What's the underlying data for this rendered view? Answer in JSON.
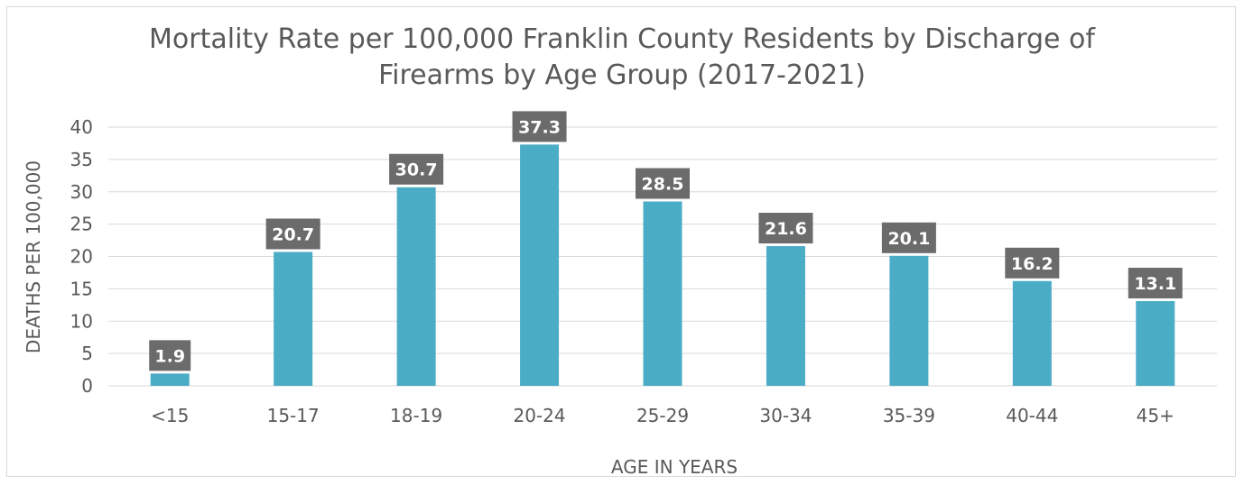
{
  "chart_data": {
    "type": "bar",
    "title_lines": [
      "Mortality Rate per 100,000 Franklin County Residents by Discharge of",
      "Firearms by Age Group (2017-2021)"
    ],
    "xlabel": "AGE IN YEARS",
    "ylabel": "DEATHS PER 100,000",
    "categories": [
      "<15",
      "15-17",
      "18-19",
      "20-24",
      "25-29",
      "30-34",
      "35-39",
      "40-44",
      "45+"
    ],
    "values": [
      1.9,
      20.7,
      30.7,
      37.3,
      28.5,
      21.6,
      20.1,
      16.2,
      13.1
    ],
    "data_labels": [
      "1.9",
      "20.7",
      "30.7",
      "37.3",
      "28.5",
      "21.6",
      "20.1",
      "16.2",
      "13.1"
    ],
    "ylim": [
      0,
      40
    ],
    "yticks": [
      "0",
      "5",
      "10",
      "15",
      "20",
      "25",
      "30",
      "35",
      "40"
    ],
    "grid": true,
    "legend": "none",
    "colors": {
      "bar": "#4bacc6",
      "label_bg": "#6b6b6b",
      "label_text": "#ffffff",
      "grid": "#d9d9d9",
      "axis_text": "#595959"
    }
  }
}
